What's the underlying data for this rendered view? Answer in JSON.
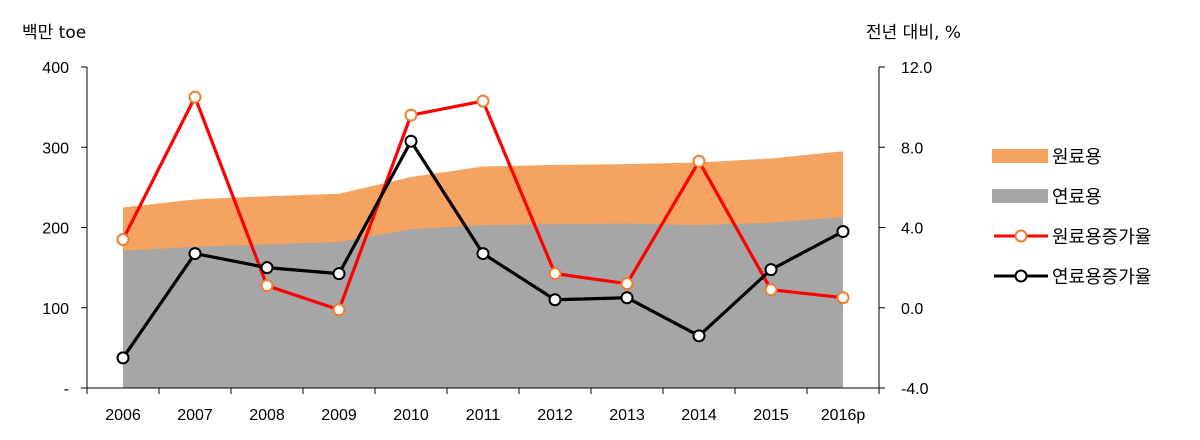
{
  "chart_data": {
    "type": "area",
    "categories": [
      "2006",
      "2007",
      "2008",
      "2009",
      "2010",
      "2011",
      "2012",
      "2013",
      "2014",
      "2015",
      "2016p"
    ],
    "y_left": {
      "label": "백만 toe",
      "ylim": [
        0,
        400
      ],
      "ticks": [
        0,
        100,
        200,
        300,
        400
      ],
      "tick_labels": [
        "-",
        "100",
        "200",
        "300",
        "400"
      ]
    },
    "y_right": {
      "label": "전년 대비, %",
      "ylim": [
        -4,
        12
      ],
      "ticks": [
        -4,
        0,
        4,
        8,
        12
      ],
      "tick_labels": [
        "-4.0",
        "0.0",
        "4.0",
        "8.0",
        "12.0"
      ]
    },
    "series": [
      {
        "name": "원료용",
        "type": "area",
        "axis": "left",
        "color": "#F4A460",
        "values": [
          225,
          235,
          239,
          242,
          263,
          276,
          278,
          279,
          281,
          286,
          295
        ]
      },
      {
        "name": "연료용",
        "type": "area",
        "axis": "left",
        "color": "#A6A6A6",
        "values": [
          171,
          176,
          179,
          182,
          198,
          203,
          204,
          205,
          203,
          206,
          213
        ]
      },
      {
        "name": "원료용증가율",
        "type": "line",
        "axis": "right",
        "color": "#FF0000",
        "marker_edge": "#ED7D31",
        "values": [
          3.4,
          10.5,
          1.1,
          -0.1,
          9.6,
          10.3,
          1.7,
          1.2,
          7.3,
          0.9,
          0.5
        ]
      },
      {
        "name": "연료용증가율",
        "type": "line",
        "axis": "right",
        "color": "#000000",
        "marker_edge": "#000000",
        "values": [
          -2.5,
          2.7,
          2.0,
          1.7,
          8.3,
          2.7,
          0.4,
          0.5,
          -1.4,
          1.9,
          3.8
        ]
      }
    ],
    "grid": false,
    "legend_position": "right"
  }
}
